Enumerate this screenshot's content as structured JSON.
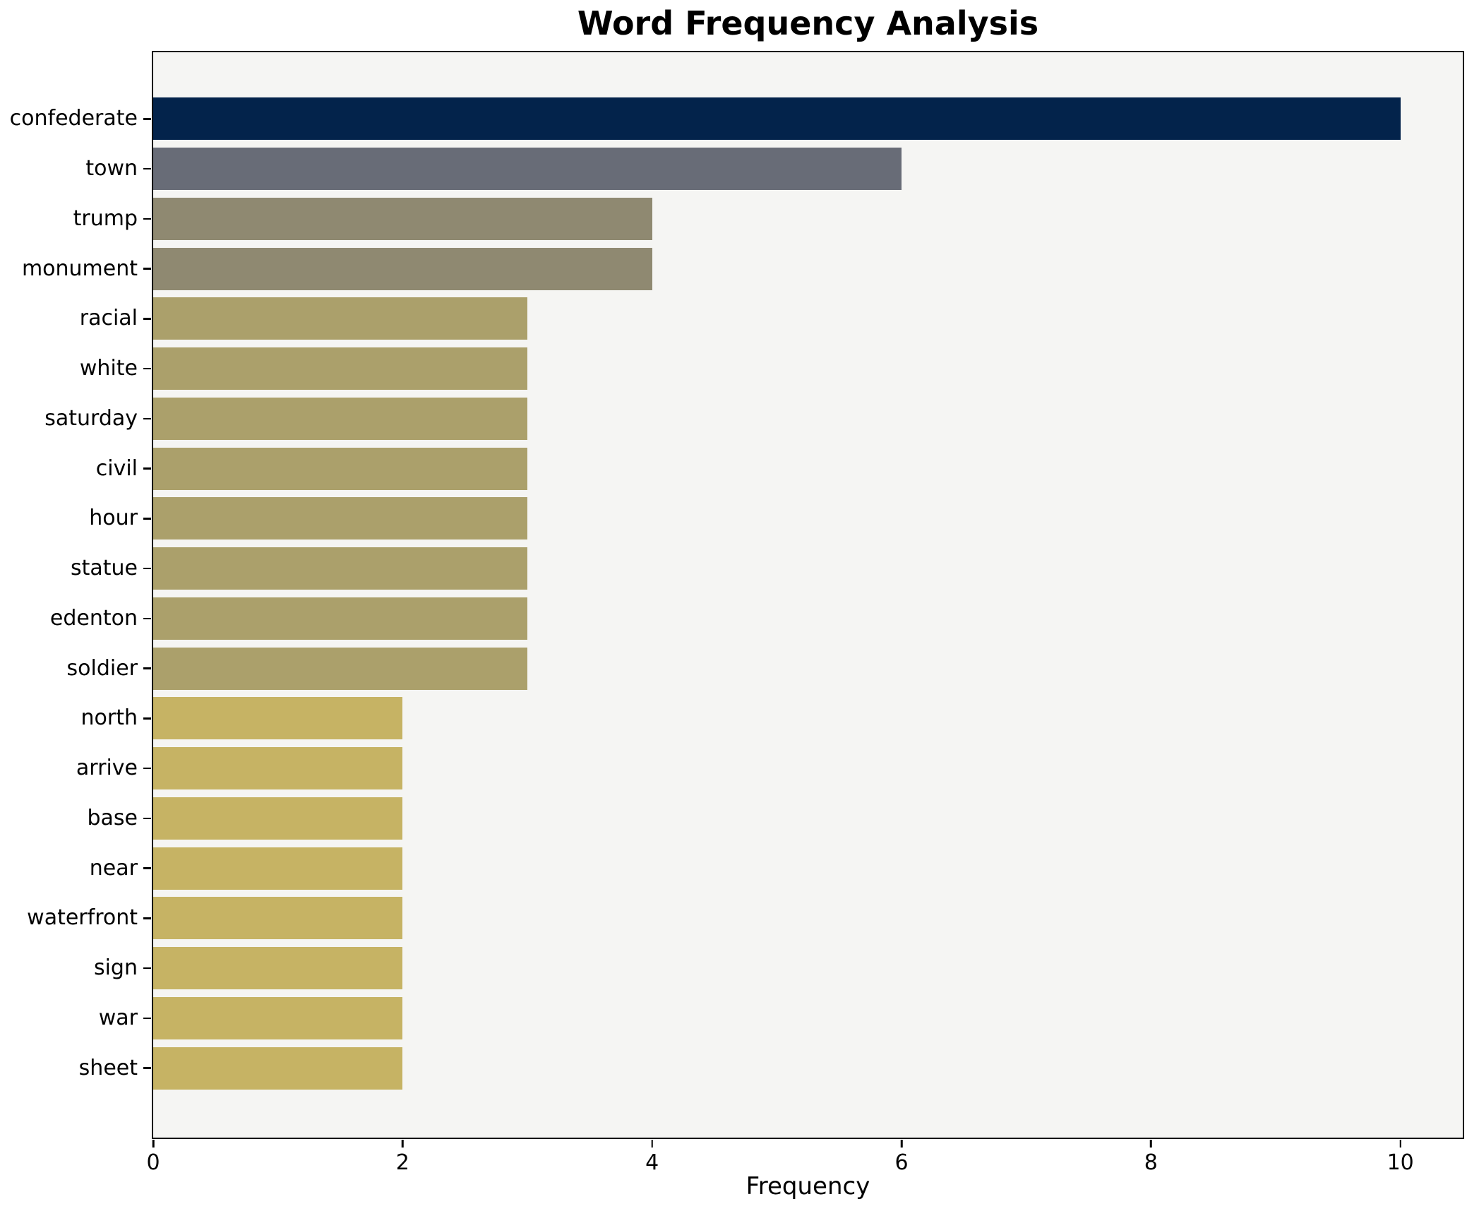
{
  "chart_data": {
    "type": "bar",
    "orientation": "horizontal",
    "title": "Word Frequency Analysis",
    "xlabel": "Frequency",
    "ylabel": "",
    "categories": [
      "confederate",
      "town",
      "trump",
      "monument",
      "racial",
      "white",
      "saturday",
      "civil",
      "hour",
      "statue",
      "edenton",
      "soldier",
      "north",
      "arrive",
      "base",
      "near",
      "waterfront",
      "sign",
      "war",
      "sheet"
    ],
    "values": [
      10,
      6,
      4,
      4,
      3,
      3,
      3,
      3,
      3,
      3,
      3,
      3,
      2,
      2,
      2,
      2,
      2,
      2,
      2,
      2
    ],
    "bar_colors": [
      "#03234b",
      "#686c77",
      "#8f8971",
      "#8f8971",
      "#aba06b",
      "#aba06b",
      "#aba06b",
      "#aba06b",
      "#aba06b",
      "#aba06b",
      "#aba06b",
      "#aba06b",
      "#c6b364",
      "#c6b364",
      "#c6b364",
      "#c6b364",
      "#c6b364",
      "#c6b364",
      "#c6b364",
      "#c6b364"
    ],
    "xtick_labels": [
      "0",
      "2",
      "4",
      "6",
      "8",
      "10"
    ],
    "xtick_values": [
      0,
      2,
      4,
      6,
      8,
      10
    ],
    "xlim": [
      0,
      10.5
    ],
    "grid": false,
    "legend": null,
    "plot_bg": "#f5f5f3",
    "figure_bg": "#ffffff",
    "axis_color": "#000000"
  }
}
